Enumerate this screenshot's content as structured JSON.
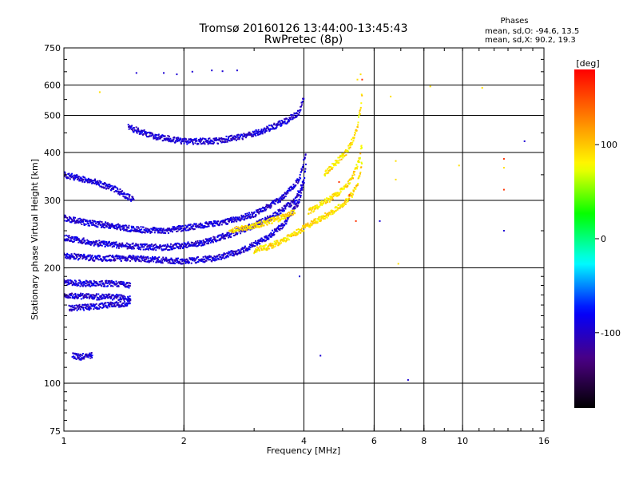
{
  "chart_data": {
    "type": "scatter",
    "title": "Tromsø 20160126 13:44:00-13:45:43",
    "subtitle": "RwPretec (8p)",
    "xlabel": "Frequency [MHz]",
    "ylabel": "Stationary phase Virtual Height [km]",
    "xscale": "log",
    "yscale": "log",
    "xlim": [
      1,
      16
    ],
    "ylim": [
      75,
      750
    ],
    "x_ticks": [
      1,
      2,
      4,
      8,
      16
    ],
    "x_tick_labels": [
      "1",
      "2",
      "4",
      "6",
      "8",
      "10",
      "16"
    ],
    "x_tick_label_values": [
      1,
      2,
      4,
      6,
      8,
      10,
      16
    ],
    "x_gridlines": [
      1,
      2,
      4,
      6,
      8,
      10,
      16
    ],
    "y_tick_labels": [
      "75",
      "100",
      "200",
      "300",
      "400",
      "500",
      "600",
      "750"
    ],
    "y_tick_label_values": [
      75,
      100,
      200,
      300,
      400,
      500,
      600,
      750
    ],
    "y_gridlines": [
      100,
      200,
      300,
      400,
      500,
      600
    ],
    "grid": true,
    "legend": {
      "title": "Phases",
      "line1": "mean, sd,O: -94.6, 13.5",
      "line2": "mean, sd,X:  90.2, 19.3",
      "placement": "top-right"
    },
    "colorbar": {
      "label": "[deg]",
      "ticks": [
        -100,
        0,
        100
      ],
      "tick_labels": [
        "-100",
        "0",
        "100"
      ],
      "range": [
        -180,
        180
      ],
      "colors": [
        "#000000",
        "#4b0082",
        "#0000ff",
        "#00ffff",
        "#00ff00",
        "#ffff00",
        "#ff8000",
        "#ff0000"
      ]
    },
    "series": [
      {
        "color_value": -95,
        "traces": [
          {
            "x": [
              1.0,
              1.2,
              1.45,
              1.7,
              2.0,
              2.4,
              2.8,
              3.2,
              3.6,
              3.9,
              4.0
            ],
            "y": [
              215,
              212,
              212,
              210,
              208,
              212,
              222,
              238,
              262,
              300,
              340
            ]
          },
          {
            "x": [
              1.0,
              1.2,
              1.45,
              1.8,
              2.2,
              2.6,
              3.0,
              3.4,
              3.8,
              4.0,
              4.05
            ],
            "y": [
              240,
              232,
              228,
              226,
              232,
              244,
              258,
              275,
              300,
              335,
              380
            ]
          },
          {
            "x": [
              1.0,
              1.15,
              1.3,
              1.5,
              1.8,
              2.1,
              2.5,
              3.0,
              3.5,
              3.9,
              4.05
            ],
            "y": [
              270,
              262,
              258,
              252,
              250,
              256,
              262,
              276,
              302,
              340,
              400
            ]
          },
          {
            "x": [
              1.45,
              1.7,
              2.0,
              2.4,
              2.8,
              3.2,
              3.6,
              3.9,
              4.0
            ],
            "y": [
              465,
              440,
              428,
              428,
              440,
              458,
              482,
              510,
              560
            ]
          },
          {
            "x": [
              1.0,
              1.15,
              1.3,
              1.42,
              1.47
            ],
            "y": [
              183,
              182,
              182,
              181,
              180
            ]
          },
          {
            "x": [
              1.0,
              1.15,
              1.3,
              1.42,
              1.47
            ],
            "y": [
              170,
              168,
              168,
              167,
              166
            ]
          },
          {
            "x": [
              1.03,
              1.15,
              1.3,
              1.42,
              1.47
            ],
            "y": [
              157,
              158,
              160,
              161,
              164
            ]
          },
          {
            "x": [
              1.05,
              1.1,
              1.14,
              1.18
            ],
            "y": [
              118,
              117,
              118,
              118
            ]
          },
          {
            "x": [
              1.0,
              1.2,
              1.35,
              1.5
            ],
            "y": [
              350,
              335,
              320,
              300
            ]
          }
        ],
        "points": [
          {
            "x": 1.52,
            "y": 645
          },
          {
            "x": 1.78,
            "y": 645
          },
          {
            "x": 1.92,
            "y": 640
          },
          {
            "x": 2.1,
            "y": 650
          },
          {
            "x": 2.35,
            "y": 655
          },
          {
            "x": 2.5,
            "y": 652
          },
          {
            "x": 2.72,
            "y": 655
          },
          {
            "x": 7.3,
            "y": 102
          },
          {
            "x": 3.9,
            "y": 190
          },
          {
            "x": 4.4,
            "y": 118
          },
          {
            "x": 6.2,
            "y": 265
          },
          {
            "x": 14.3,
            "y": 428
          },
          {
            "x": 12.7,
            "y": 250
          }
        ]
      },
      {
        "color_value": 90,
        "traces": [
          {
            "x": [
              3.0,
              3.3,
              3.6,
              3.9,
              4.2,
              4.6,
              5.0,
              5.3,
              5.5,
              5.6
            ],
            "y": [
              222,
              228,
              238,
              250,
              262,
              276,
              292,
              312,
              340,
              380
            ]
          },
          {
            "x": [
              4.1,
              4.4,
              4.7,
              5.0,
              5.3,
              5.5,
              5.6
            ],
            "y": [
              280,
              292,
              305,
              320,
              345,
              380,
              420
            ]
          },
          {
            "x": [
              4.5,
              4.8,
              5.1,
              5.3,
              5.45,
              5.55,
              5.6
            ],
            "y": [
              350,
              375,
              400,
              430,
              470,
              520,
              580
            ]
          },
          {
            "x": [
              2.6,
              2.9,
              3.2,
              3.5,
              3.8
            ],
            "y": [
              250,
              255,
              262,
              270,
              280
            ]
          }
        ],
        "points": [
          {
            "x": 1.23,
            "y": 575
          },
          {
            "x": 6.9,
            "y": 205
          },
          {
            "x": 6.8,
            "y": 380
          },
          {
            "x": 6.8,
            "y": 340
          },
          {
            "x": 8.3,
            "y": 595
          },
          {
            "x": 9.8,
            "y": 370
          },
          {
            "x": 11.2,
            "y": 590
          },
          {
            "x": 12.7,
            "y": 365
          },
          {
            "x": 6.6,
            "y": 560
          },
          {
            "x": 5.55,
            "y": 640
          },
          {
            "x": 5.45,
            "y": 620
          }
        ]
      },
      {
        "color_value": 160,
        "points": [
          {
            "x": 12.7,
            "y": 385
          },
          {
            "x": 12.7,
            "y": 320
          },
          {
            "x": 5.6,
            "y": 620
          },
          {
            "x": 5.2,
            "y": 310
          },
          {
            "x": 4.9,
            "y": 335
          },
          {
            "x": 5.4,
            "y": 265
          }
        ]
      }
    ]
  }
}
